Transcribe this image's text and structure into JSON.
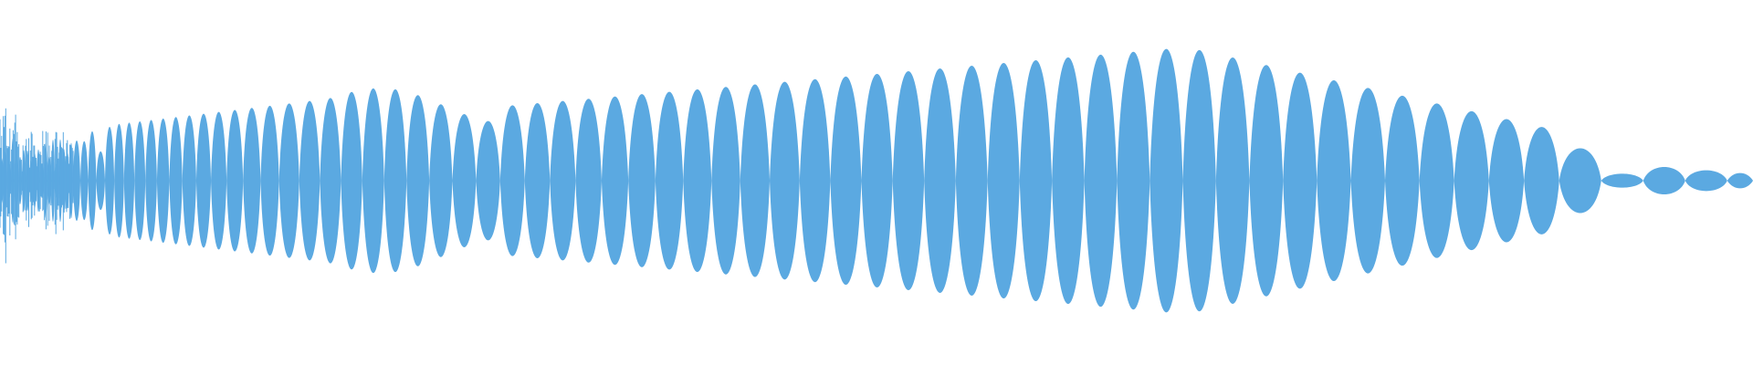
{
  "waveform": {
    "color": "#5ba9e1",
    "background": "#ffffff"
  }
}
